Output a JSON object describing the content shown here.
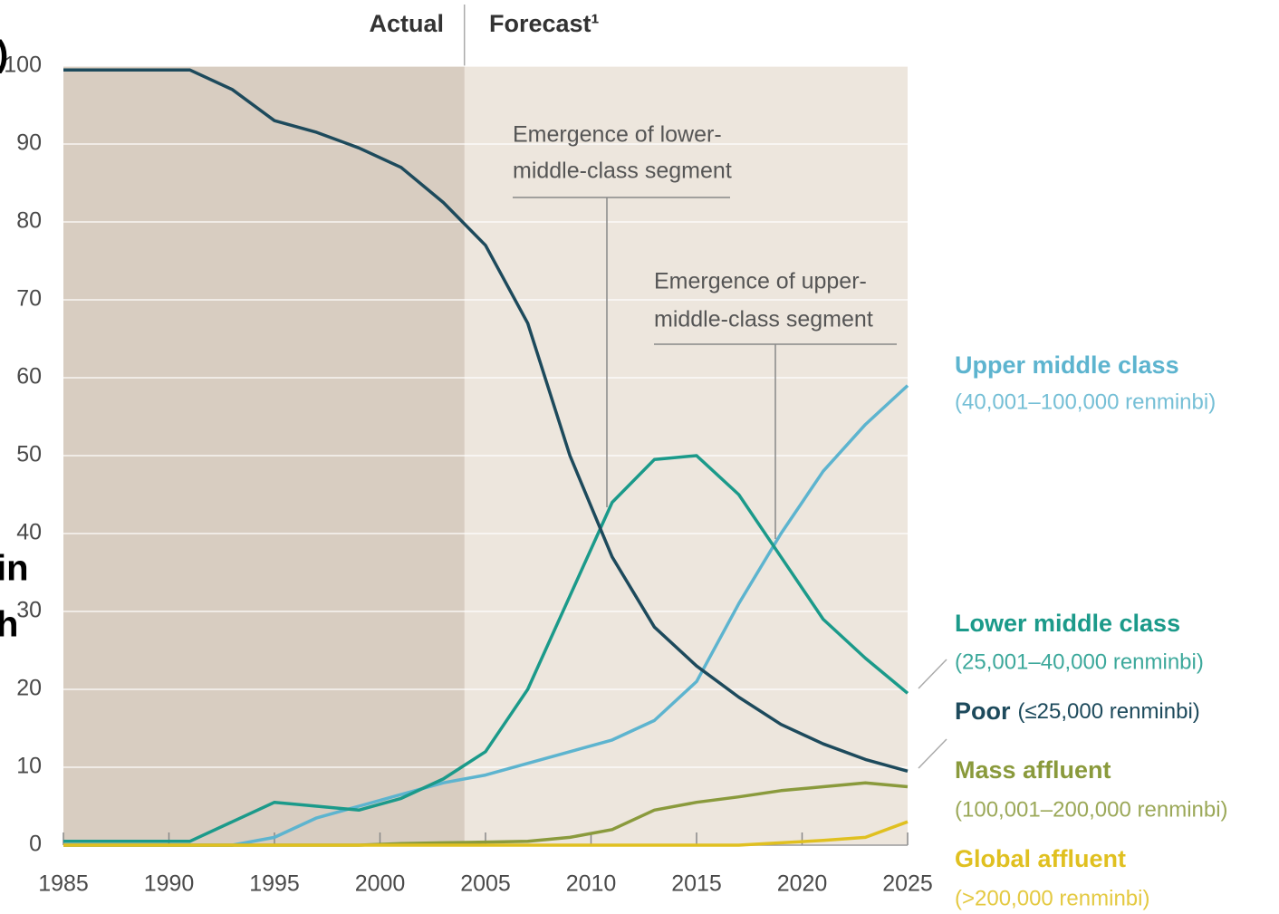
{
  "fragments": [
    ")",
    "in",
    "h"
  ],
  "chart_data": {
    "type": "line",
    "actual_label": "Actual",
    "forecast_label": "Forecast¹",
    "actual_end": 2004,
    "x": [
      1985,
      1987,
      1989,
      1991,
      1993,
      1995,
      1997,
      1999,
      2001,
      2003,
      2005,
      2007,
      2009,
      2011,
      2013,
      2015,
      2017,
      2019,
      2021,
      2023,
      2025
    ],
    "xlim": [
      1985,
      2025
    ],
    "xticks": [
      1985,
      1990,
      1995,
      2000,
      2005,
      2010,
      2015,
      2020,
      2025
    ],
    "ylim": [
      0,
      100
    ],
    "yticks": [
      0,
      10,
      20,
      30,
      40,
      50,
      60,
      70,
      80,
      90,
      100
    ],
    "grid": true,
    "annotations": [
      "Emergence of lower-",
      "middle-class segment",
      "Emergence of upper-",
      "middle-class segment"
    ],
    "series": [
      {
        "name": "Upper middle class",
        "note": "(40,001–100,000 renminbi)",
        "color": "#5db4cf",
        "values": [
          0,
          0,
          0,
          0,
          0,
          1,
          3.5,
          5,
          6.5,
          8,
          9,
          10.5,
          12,
          13.5,
          16,
          21,
          31,
          40,
          48,
          54,
          59
        ]
      },
      {
        "name": "Lower middle class",
        "note": "(25,001–40,000 renminbi)",
        "color": "#1b9a8a",
        "values": [
          0.5,
          0.5,
          0.5,
          0.5,
          3,
          5.5,
          5,
          4.5,
          6,
          8.5,
          12,
          20,
          32,
          44,
          49.5,
          50,
          45,
          37,
          29,
          24,
          19.5
        ]
      },
      {
        "name": "Poor",
        "note": "(≤25,000 renminbi)",
        "color": "#1d4a5c",
        "values": [
          99.5,
          99.5,
          99.5,
          99.5,
          97,
          93,
          91.5,
          89.5,
          87,
          82.5,
          77,
          67,
          50,
          37,
          28,
          23,
          19,
          15.5,
          13,
          11,
          9.5
        ]
      },
      {
        "name": "Mass affluent",
        "note": "(100,001–200,000 renminbi)",
        "color": "#8a9a3c",
        "values": [
          0,
          0,
          0,
          0,
          0,
          0,
          0,
          0,
          0.2,
          0.3,
          0.4,
          0.5,
          1,
          2,
          4.5,
          5.5,
          6.2,
          7,
          7.5,
          8,
          7.5
        ]
      },
      {
        "name": "Global affluent",
        "note": "(>200,000 renminbi)",
        "color": "#e0c020",
        "values": [
          0,
          0,
          0,
          0,
          0,
          0,
          0,
          0,
          0,
          0,
          0,
          0,
          0,
          0,
          0,
          0,
          0,
          0.3,
          0.6,
          1,
          3
        ]
      }
    ]
  }
}
